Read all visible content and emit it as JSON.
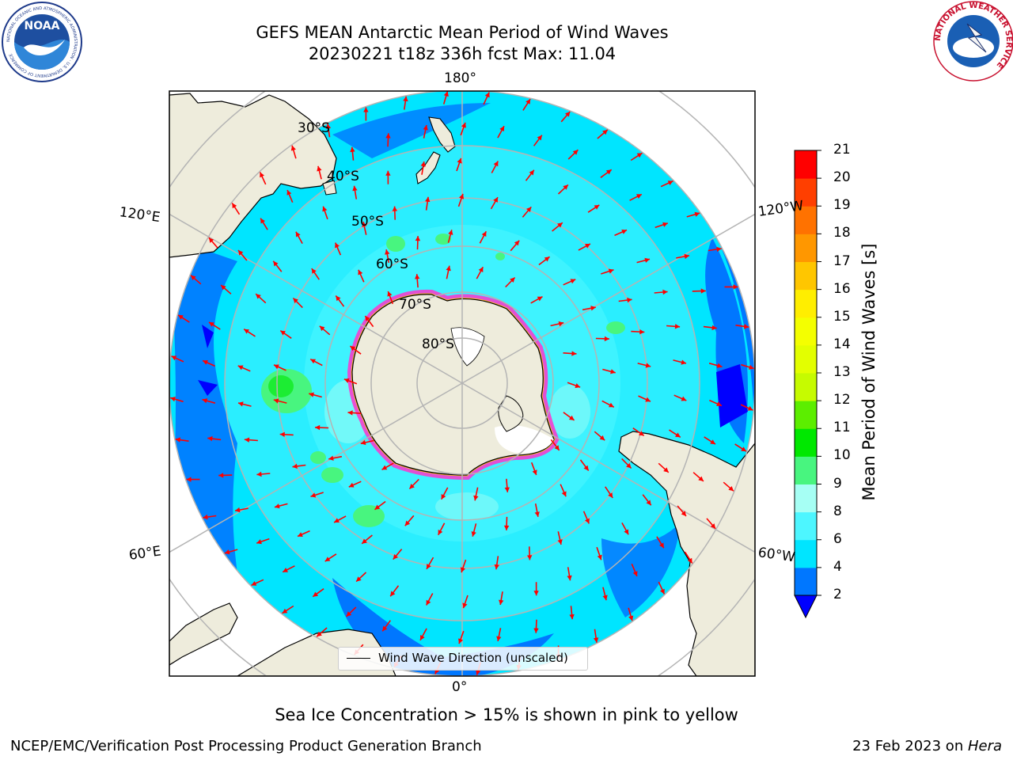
{
  "header": {
    "title_line1": "GEFS MEAN Antarctic Mean Period of Wind Waves",
    "title_line2": "20230221 t18z 336h fcst   Max: 11.04"
  },
  "logos": {
    "noaa": {
      "text": "NOAA",
      "ring_text": "NATIONAL OCEANIC AND ATMOSPHERIC ADMINISTRATION · U.S. DEPARTMENT OF COMMERCE"
    },
    "nws": {
      "ring_text": "NATIONAL WEATHER SERVICE"
    }
  },
  "map": {
    "projection": "south-polar-stereographic",
    "longitude_labels": {
      "top": "180°",
      "bottom": "0°",
      "left_upper": "120°E",
      "left_lower": "60°E",
      "right_upper": "120°W",
      "right_lower": "60°W"
    },
    "latitude_labels": [
      "30°S",
      "40°S",
      "50°S",
      "60°S",
      "70°S",
      "80°S"
    ],
    "legend_label": "Wind Wave Direction (unscaled)",
    "land_color": "#eeecdc",
    "arrow_color": "#ff0000",
    "grid_color": "#b4b4b4"
  },
  "colorbar": {
    "label": "Mean Period of Wind Waves [s]",
    "ticks": [
      "2",
      "4",
      "6",
      "8",
      "9",
      "10",
      "11",
      "12",
      "13",
      "14",
      "15",
      "16",
      "17",
      "18",
      "19",
      "20",
      "21"
    ],
    "colors": [
      "#0077ff",
      "#00e5ff",
      "#4df6ff",
      "#a6fff4",
      "#48f57f",
      "#00e800",
      "#5cee00",
      "#c6fb00",
      "#e3ff00",
      "#f4ff00",
      "#ffee00",
      "#ffc600",
      "#ff9700",
      "#ff7200",
      "#ff3f00",
      "#ff0000"
    ],
    "under_color": "#0000ff"
  },
  "caption": "Sea Ice Concentration > 15% is shown in pink to yellow",
  "footer": {
    "left": "NCEP/EMC/Verification Post Processing Product Generation Branch",
    "right_date": "23 Feb 2023 on ",
    "right_machine": "Hera"
  }
}
